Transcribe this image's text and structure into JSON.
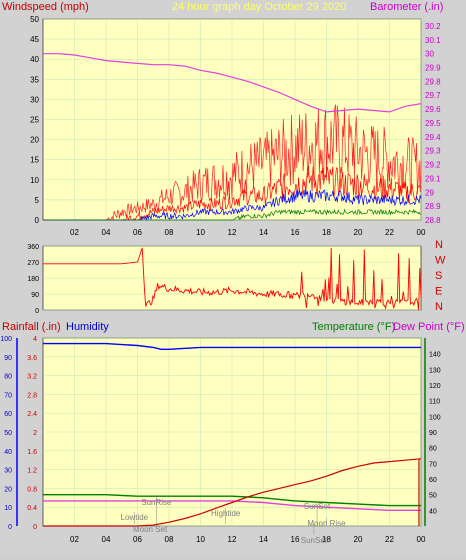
{
  "header": {
    "left_label": "Windspeed (mph)",
    "center_label": "24 hour graph day   October 29 2020",
    "right_label": "Barometer (.in)"
  },
  "colors": {
    "background": "#d2d2d2",
    "plot": "#ffffc0",
    "grid": "#bfe6b8",
    "wind": "#ff0000",
    "gust": "#ff2020",
    "avg_blue": "#0000ff",
    "avg_green": "#008000",
    "baro": "#e040e0",
    "humidity": "#0000ff",
    "temperature": "#008000",
    "dewpoint": "#e040e0",
    "rain": "#cc0000"
  },
  "chart_data": [
    {
      "type": "line",
      "title": "24 hour graph day   October 29 2020",
      "xticks": [
        "02",
        "04",
        "06",
        "08",
        "10",
        "12",
        "14",
        "16",
        "18",
        "20",
        "22",
        "00"
      ],
      "xrange": [
        0,
        24
      ],
      "ylabel_left": "Windspeed (mph)",
      "ylim_left": [
        0,
        50
      ],
      "yticks_left": [
        0,
        5,
        10,
        15,
        20,
        25,
        30,
        35,
        40,
        45,
        50
      ],
      "ylabel_right": "Barometer (.in)",
      "ylim_right": [
        28.8,
        30.25
      ],
      "yticks_right": [
        "28.8",
        "28.9",
        "29",
        "29.1",
        "29.2",
        "29.3",
        "29.4",
        "29.5",
        "29.6",
        "29.7",
        "29.8",
        "29.9",
        "30",
        "30.1",
        "30.2"
      ],
      "series": [
        {
          "name": "Barometer (.in)",
          "axis": "right",
          "x": [
            0,
            1,
            2,
            3,
            4,
            5,
            6,
            7,
            8,
            9,
            10,
            11,
            12,
            13,
            14,
            15,
            16,
            17,
            18,
            19,
            20,
            21,
            22,
            23,
            24
          ],
          "y": [
            30.0,
            30.0,
            29.99,
            29.97,
            29.95,
            29.94,
            29.93,
            29.92,
            29.92,
            29.91,
            29.88,
            29.86,
            29.83,
            29.8,
            29.76,
            29.72,
            29.67,
            29.62,
            29.58,
            29.59,
            29.6,
            29.59,
            29.58,
            29.62,
            29.64
          ]
        },
        {
          "name": "gust",
          "axis": "left",
          "x": [
            0,
            1,
            2,
            3,
            4,
            5,
            6,
            7,
            8,
            9,
            10,
            11,
            12,
            13,
            14,
            15,
            16,
            17,
            18,
            19,
            20,
            21,
            22,
            23,
            24
          ],
          "y": [
            0,
            0,
            0,
            0,
            0,
            2,
            3,
            4,
            6,
            7,
            9,
            10,
            11,
            13,
            14,
            16,
            18,
            19,
            20,
            19,
            17,
            16,
            15,
            14,
            13
          ]
        },
        {
          "name": "wind",
          "axis": "left",
          "x": [
            0,
            1,
            2,
            3,
            4,
            5,
            6,
            7,
            8,
            9,
            10,
            11,
            12,
            13,
            14,
            15,
            16,
            17,
            18,
            19,
            20,
            21,
            22,
            23,
            24
          ],
          "y": [
            0,
            0,
            0,
            0,
            0,
            0,
            1,
            2,
            3,
            3,
            4,
            4,
            5,
            6,
            6,
            8,
            9,
            10,
            10,
            9,
            9,
            8,
            8,
            7,
            7
          ]
        },
        {
          "name": "average",
          "axis": "left",
          "x": [
            0,
            1,
            2,
            3,
            4,
            5,
            6,
            7,
            8,
            9,
            10,
            11,
            12,
            13,
            14,
            15,
            16,
            17,
            18,
            19,
            20,
            21,
            22,
            23,
            24
          ],
          "y": [
            0,
            0,
            0,
            0,
            0,
            0,
            0,
            1,
            1,
            1,
            2,
            2,
            2,
            3,
            3,
            5,
            6,
            6,
            6,
            6,
            5,
            5,
            5,
            5,
            5
          ]
        },
        {
          "name": "low",
          "axis": "left",
          "x": [
            0,
            1,
            2,
            3,
            4,
            5,
            6,
            7,
            8,
            9,
            10,
            11,
            12,
            13,
            14,
            15,
            16,
            17,
            18,
            19,
            20,
            21,
            22,
            23,
            24
          ],
          "y": [
            0,
            0,
            0,
            0,
            0,
            0,
            0,
            0,
            0,
            0,
            0,
            0,
            0,
            1,
            1,
            2,
            2,
            2,
            2,
            2,
            2,
            2,
            2,
            2,
            2
          ]
        }
      ]
    },
    {
      "type": "line",
      "ylim": [
        0,
        360
      ],
      "yticks": [
        0,
        45,
        90,
        135,
        180,
        225,
        270,
        315,
        360
      ],
      "compass_labels": [
        "N",
        "W",
        "S",
        "E",
        "N"
      ],
      "series": [
        {
          "name": "direction",
          "x": [
            0,
            3,
            5,
            6,
            6.3,
            6.5,
            7,
            7.3,
            8,
            9,
            10,
            11,
            12,
            13,
            14,
            15,
            16,
            17,
            18,
            19,
            20,
            21,
            22,
            23,
            24
          ],
          "y": [
            260,
            260,
            260,
            270,
            350,
            20,
            60,
            140,
            120,
            110,
            100,
            100,
            110,
            100,
            90,
            90,
            80,
            90,
            60,
            50,
            40,
            50,
            40,
            40,
            50
          ]
        }
      ]
    },
    {
      "type": "line",
      "xticks": [
        "02",
        "04",
        "06",
        "08",
        "10",
        "12",
        "14",
        "16",
        "18",
        "20",
        "22",
        "00"
      ],
      "xrange": [
        0,
        24
      ],
      "ylabel_left_1": "Rainfall (.in)",
      "ylabel_left_2": "Humidity",
      "ylabel_right_1": "Temperature (°F)",
      "ylabel_right_2": "Dew Point (°F)",
      "yticks_humidity": [
        0,
        10,
        20,
        30,
        40,
        50,
        60,
        70,
        80,
        90,
        100
      ],
      "yticks_rain": [
        "0",
        "0.4",
        "0.8",
        "1.2",
        "1.6",
        "2",
        "2.4",
        "2.8",
        "3.2",
        "3.6",
        "4"
      ],
      "yticks_temp": [
        40,
        50,
        60,
        70,
        80,
        90,
        100,
        110,
        120,
        130,
        140
      ],
      "ylim_humidity": [
        0,
        100
      ],
      "ylim_temp": [
        30,
        150
      ],
      "series": [
        {
          "name": "Humidity",
          "x": [
            0,
            2,
            4,
            6,
            7,
            7.5,
            8,
            10,
            11,
            12,
            14,
            16,
            18,
            20,
            22,
            24
          ],
          "y": [
            97,
            97,
            97,
            96,
            95,
            94,
            94,
            95,
            95,
            95,
            95,
            95,
            95,
            95,
            95,
            95
          ]
        },
        {
          "name": "Temperature (°F)",
          "x": [
            0,
            2,
            4,
            6,
            8,
            10,
            12,
            14,
            15,
            16,
            18,
            20,
            22,
            24
          ],
          "y": [
            50,
            50,
            50,
            49,
            49,
            49,
            49,
            48,
            47,
            46,
            45,
            44,
            43,
            43
          ]
        },
        {
          "name": "Dew Point (°F)",
          "x": [
            0,
            2,
            4,
            6,
            8,
            10,
            12,
            14,
            15,
            16,
            18,
            20,
            22,
            24
          ],
          "y": [
            46,
            46,
            46,
            46,
            46,
            46,
            46,
            45,
            44,
            43,
            42,
            41,
            40,
            40
          ]
        },
        {
          "name": "Rainfall (.in)",
          "x": [
            0,
            6,
            7,
            8,
            9,
            10,
            11,
            12,
            13,
            14,
            15,
            16,
            17,
            18,
            19,
            20,
            21,
            22,
            23,
            24
          ],
          "y": [
            0,
            0,
            0.02,
            0.08,
            0.16,
            0.26,
            0.38,
            0.5,
            0.62,
            0.72,
            0.8,
            0.88,
            0.96,
            1.06,
            1.18,
            1.27,
            1.34,
            1.37,
            1.4,
            1.43
          ]
        }
      ],
      "annotations": [
        {
          "text": "SunRise",
          "x": 7.2
        },
        {
          "text": "Lowtide",
          "x": 5.8
        },
        {
          "text": "Moon Set",
          "x": 6.8
        },
        {
          "text": "Hightide",
          "x": 11.6
        },
        {
          "text": "SunSet",
          "x": 17.4
        },
        {
          "text": "Moon Rise",
          "x": 18.0
        },
        {
          "text": "SunSet",
          "x": 17.2
        }
      ]
    }
  ]
}
